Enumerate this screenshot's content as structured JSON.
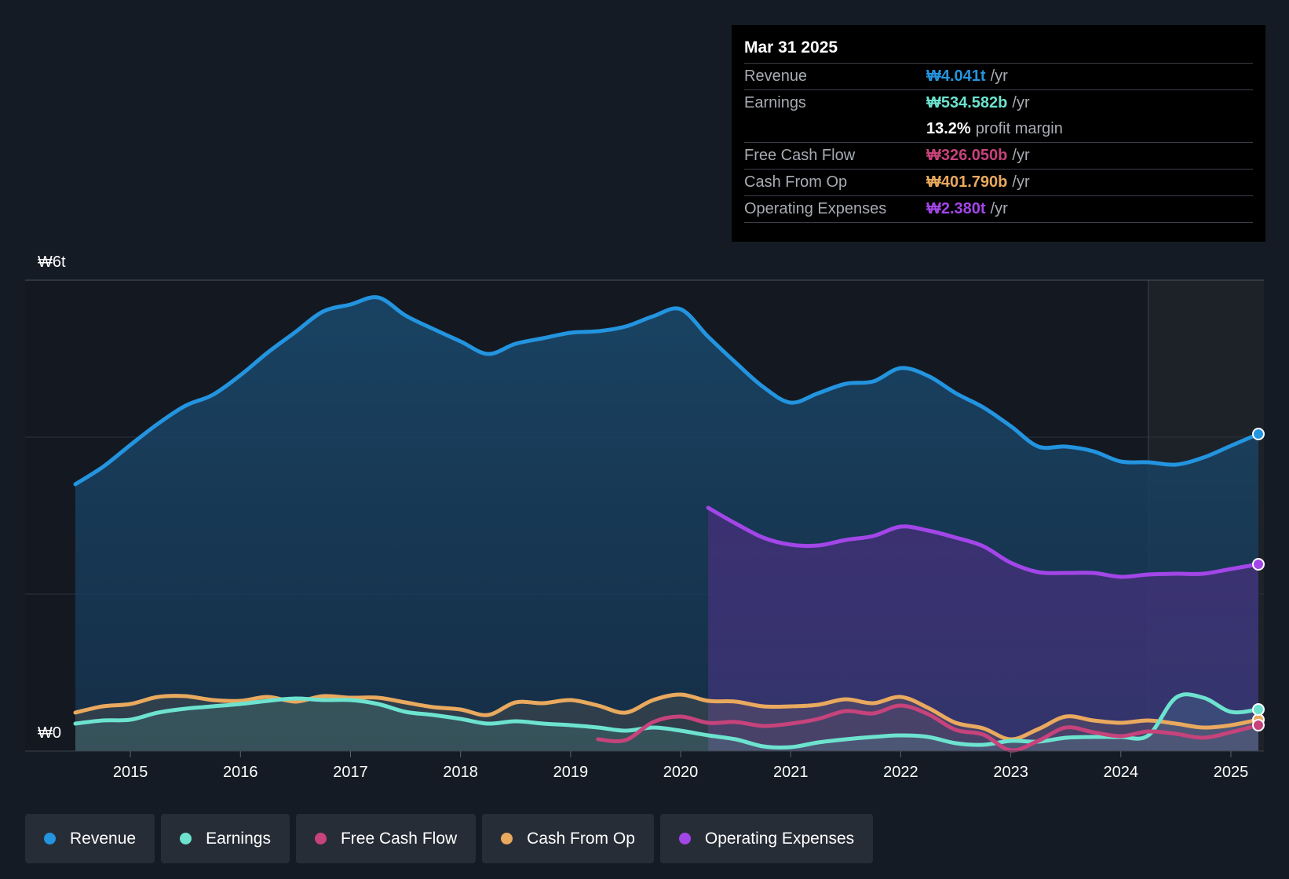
{
  "tooltip": {
    "date": "Mar 31 2025",
    "rows": [
      {
        "label": "Revenue",
        "value": "₩4.041t",
        "unit": "/yr",
        "color": "#2394df"
      },
      {
        "label": "Earnings",
        "value": "₩534.582b",
        "unit": "/yr",
        "color": "#6de3cf"
      },
      {
        "label": "",
        "value": "13.2%",
        "unit": "profit margin",
        "color": "#ffffff"
      },
      {
        "label": "Free Cash Flow",
        "value": "₩326.050b",
        "unit": "/yr",
        "color": "#c6437b"
      },
      {
        "label": "Cash From Op",
        "value": "₩401.790b",
        "unit": "/yr",
        "color": "#e9a95e"
      },
      {
        "label": "Operating Expenses",
        "value": "₩2.380t",
        "unit": "/yr",
        "color": "#a346e8"
      }
    ]
  },
  "legend": [
    {
      "label": "Revenue",
      "color": "#2394df"
    },
    {
      "label": "Earnings",
      "color": "#6de3cf"
    },
    {
      "label": "Free Cash Flow",
      "color": "#c6437b"
    },
    {
      "label": "Cash From Op",
      "color": "#e9a95e"
    },
    {
      "label": "Operating Expenses",
      "color": "#a346e8"
    }
  ],
  "chart_data": {
    "type": "area",
    "title": "",
    "ylabel_top": "₩6t",
    "ylabel_bottom": "₩0",
    "ylim": [
      0,
      6
    ],
    "units": "trillion KRW",
    "xlim": [
      2014.5,
      2025.25
    ],
    "x_ticks": [
      "2015",
      "2016",
      "2017",
      "2018",
      "2019",
      "2020",
      "2021",
      "2022",
      "2023",
      "2024",
      "2025"
    ],
    "forecast_start": 2024.25,
    "series": [
      {
        "name": "Revenue",
        "color": "#2394df",
        "points": [
          [
            2014.5,
            3.4
          ],
          [
            2014.75,
            3.62
          ],
          [
            2015.0,
            3.9
          ],
          [
            2015.25,
            4.17
          ],
          [
            2015.5,
            4.4
          ],
          [
            2015.75,
            4.54
          ],
          [
            2016.0,
            4.79
          ],
          [
            2016.25,
            5.08
          ],
          [
            2016.5,
            5.34
          ],
          [
            2016.75,
            5.6
          ],
          [
            2017.0,
            5.69
          ],
          [
            2017.25,
            5.78
          ],
          [
            2017.5,
            5.55
          ],
          [
            2017.75,
            5.38
          ],
          [
            2018.0,
            5.22
          ],
          [
            2018.25,
            5.06
          ],
          [
            2018.5,
            5.19
          ],
          [
            2018.75,
            5.26
          ],
          [
            2019.0,
            5.33
          ],
          [
            2019.25,
            5.35
          ],
          [
            2019.5,
            5.41
          ],
          [
            2019.75,
            5.54
          ],
          [
            2020.0,
            5.63
          ],
          [
            2020.25,
            5.28
          ],
          [
            2020.5,
            4.95
          ],
          [
            2020.75,
            4.64
          ],
          [
            2021.0,
            4.44
          ],
          [
            2021.25,
            4.56
          ],
          [
            2021.5,
            4.68
          ],
          [
            2021.75,
            4.71
          ],
          [
            2022.0,
            4.88
          ],
          [
            2022.25,
            4.78
          ],
          [
            2022.5,
            4.56
          ],
          [
            2022.75,
            4.38
          ],
          [
            2023.0,
            4.14
          ],
          [
            2023.25,
            3.88
          ],
          [
            2023.5,
            3.88
          ],
          [
            2023.75,
            3.82
          ],
          [
            2024.0,
            3.69
          ],
          [
            2024.25,
            3.68
          ],
          [
            2024.5,
            3.65
          ],
          [
            2024.75,
            3.74
          ],
          [
            2025.0,
            3.89
          ],
          [
            2025.25,
            4.04
          ]
        ]
      },
      {
        "name": "Earnings",
        "color": "#6de3cf",
        "points": [
          [
            2014.5,
            0.35
          ],
          [
            2014.75,
            0.39
          ],
          [
            2015.0,
            0.4
          ],
          [
            2015.25,
            0.49
          ],
          [
            2015.5,
            0.54
          ],
          [
            2015.75,
            0.57
          ],
          [
            2016.0,
            0.6
          ],
          [
            2016.25,
            0.64
          ],
          [
            2016.5,
            0.67
          ],
          [
            2016.75,
            0.65
          ],
          [
            2017.0,
            0.65
          ],
          [
            2017.25,
            0.6
          ],
          [
            2017.5,
            0.5
          ],
          [
            2017.75,
            0.46
          ],
          [
            2018.0,
            0.41
          ],
          [
            2018.25,
            0.35
          ],
          [
            2018.5,
            0.38
          ],
          [
            2018.75,
            0.35
          ],
          [
            2019.0,
            0.33
          ],
          [
            2019.25,
            0.3
          ],
          [
            2019.5,
            0.26
          ],
          [
            2019.75,
            0.3
          ],
          [
            2020.0,
            0.26
          ],
          [
            2020.25,
            0.2
          ],
          [
            2020.5,
            0.15
          ],
          [
            2020.75,
            0.06
          ],
          [
            2021.0,
            0.05
          ],
          [
            2021.25,
            0.11
          ],
          [
            2021.5,
            0.15
          ],
          [
            2021.75,
            0.18
          ],
          [
            2022.0,
            0.2
          ],
          [
            2022.25,
            0.18
          ],
          [
            2022.5,
            0.1
          ],
          [
            2022.75,
            0.08
          ],
          [
            2023.0,
            0.13
          ],
          [
            2023.25,
            0.12
          ],
          [
            2023.5,
            0.17
          ],
          [
            2023.75,
            0.18
          ],
          [
            2024.0,
            0.18
          ],
          [
            2024.25,
            0.2
          ],
          [
            2024.5,
            0.68
          ],
          [
            2024.75,
            0.68
          ],
          [
            2025.0,
            0.5
          ],
          [
            2025.25,
            0.53
          ]
        ]
      },
      {
        "name": "Free Cash Flow",
        "color": "#c6437b",
        "points": [
          [
            2019.25,
            0.15
          ],
          [
            2019.5,
            0.14
          ],
          [
            2019.75,
            0.37
          ],
          [
            2020.0,
            0.44
          ],
          [
            2020.25,
            0.36
          ],
          [
            2020.5,
            0.37
          ],
          [
            2020.75,
            0.32
          ],
          [
            2021.0,
            0.35
          ],
          [
            2021.25,
            0.41
          ],
          [
            2021.5,
            0.51
          ],
          [
            2021.75,
            0.48
          ],
          [
            2022.0,
            0.58
          ],
          [
            2022.25,
            0.47
          ],
          [
            2022.5,
            0.27
          ],
          [
            2022.75,
            0.21
          ],
          [
            2023.0,
            0.01
          ],
          [
            2023.25,
            0.13
          ],
          [
            2023.5,
            0.3
          ],
          [
            2023.75,
            0.24
          ],
          [
            2024.0,
            0.19
          ],
          [
            2024.25,
            0.25
          ],
          [
            2024.5,
            0.22
          ],
          [
            2024.75,
            0.17
          ],
          [
            2025.0,
            0.24
          ],
          [
            2025.25,
            0.33
          ]
        ]
      },
      {
        "name": "Cash From Op",
        "color": "#e9a95e",
        "points": [
          [
            2014.5,
            0.49
          ],
          [
            2014.75,
            0.57
          ],
          [
            2015.0,
            0.6
          ],
          [
            2015.25,
            0.69
          ],
          [
            2015.5,
            0.7
          ],
          [
            2015.75,
            0.65
          ],
          [
            2016.0,
            0.64
          ],
          [
            2016.25,
            0.69
          ],
          [
            2016.5,
            0.63
          ],
          [
            2016.75,
            0.7
          ],
          [
            2017.0,
            0.68
          ],
          [
            2017.25,
            0.68
          ],
          [
            2017.5,
            0.62
          ],
          [
            2017.75,
            0.56
          ],
          [
            2018.0,
            0.53
          ],
          [
            2018.25,
            0.46
          ],
          [
            2018.5,
            0.62
          ],
          [
            2018.75,
            0.61
          ],
          [
            2019.0,
            0.65
          ],
          [
            2019.25,
            0.58
          ],
          [
            2019.5,
            0.49
          ],
          [
            2019.75,
            0.65
          ],
          [
            2020.0,
            0.72
          ],
          [
            2020.25,
            0.64
          ],
          [
            2020.5,
            0.63
          ],
          [
            2020.75,
            0.57
          ],
          [
            2021.0,
            0.57
          ],
          [
            2021.25,
            0.59
          ],
          [
            2021.5,
            0.66
          ],
          [
            2021.75,
            0.61
          ],
          [
            2022.0,
            0.69
          ],
          [
            2022.25,
            0.55
          ],
          [
            2022.5,
            0.36
          ],
          [
            2022.75,
            0.29
          ],
          [
            2023.0,
            0.15
          ],
          [
            2023.25,
            0.28
          ],
          [
            2023.5,
            0.44
          ],
          [
            2023.75,
            0.39
          ],
          [
            2024.0,
            0.36
          ],
          [
            2024.25,
            0.39
          ],
          [
            2024.5,
            0.35
          ],
          [
            2024.75,
            0.3
          ],
          [
            2025.0,
            0.33
          ],
          [
            2025.25,
            0.4
          ]
        ]
      },
      {
        "name": "Operating Expenses",
        "color": "#a346e8",
        "points": [
          [
            2020.25,
            3.1
          ],
          [
            2020.5,
            2.9
          ],
          [
            2020.75,
            2.72
          ],
          [
            2021.0,
            2.63
          ],
          [
            2021.25,
            2.62
          ],
          [
            2021.5,
            2.69
          ],
          [
            2021.75,
            2.74
          ],
          [
            2022.0,
            2.86
          ],
          [
            2022.25,
            2.81
          ],
          [
            2022.5,
            2.72
          ],
          [
            2022.75,
            2.61
          ],
          [
            2023.0,
            2.4
          ],
          [
            2023.25,
            2.28
          ],
          [
            2023.5,
            2.27
          ],
          [
            2023.75,
            2.27
          ],
          [
            2024.0,
            2.22
          ],
          [
            2024.25,
            2.25
          ],
          [
            2024.5,
            2.26
          ],
          [
            2024.75,
            2.26
          ],
          [
            2025.0,
            2.32
          ],
          [
            2025.25,
            2.38
          ]
        ]
      }
    ]
  }
}
